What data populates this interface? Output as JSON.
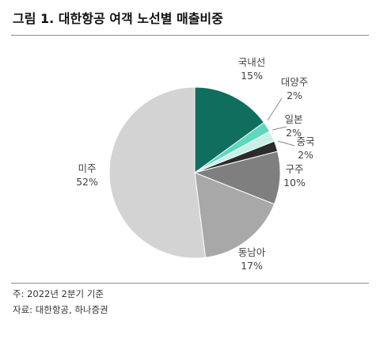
{
  "title": "그림 1. 대한항공 여객 노선별 매출비중",
  "note": "주: 2022년 2분기 기준",
  "source": "자료: 대한항공, 하나증권",
  "chart_data": {
    "type": "pie",
    "unit": "%",
    "categories": [
      "국내선",
      "대양주",
      "일본",
      "중국",
      "구주",
      "동남아",
      "미주"
    ],
    "values": [
      15,
      2,
      2,
      2,
      10,
      17,
      52
    ],
    "labels": [
      "15%",
      "2%",
      "2%",
      "2%",
      "10%",
      "17%",
      "52%"
    ],
    "colors": [
      "#0f6e5e",
      "#5fd6bd",
      "#c7f0e6",
      "#2b2b2b",
      "#7f7f7f",
      "#a8a8a8",
      "#d3d3d3"
    ],
    "start": "12 o'clock",
    "direction": "clockwise",
    "legend": "none (leader labels)"
  }
}
